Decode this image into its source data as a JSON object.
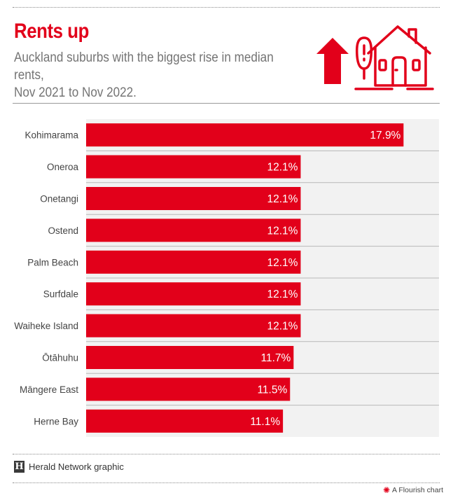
{
  "header": {
    "title": "Rents up",
    "subtitle_line1": "Auckland suburbs with the biggest rise in median rents,",
    "subtitle_line2": "Nov 2021 to Nov 2022."
  },
  "colors": {
    "accent": "#e2001a",
    "plot_background": "#f2f2f2",
    "row_divider": "#b8b8b8"
  },
  "icons": {
    "header_graphic": [
      "up-arrow-icon",
      "house-icon",
      "tree-icon"
    ]
  },
  "chart_data": {
    "type": "bar",
    "orientation": "horizontal",
    "title": "Rents up",
    "subtitle": "Auckland suburbs with the biggest rise in median rents, Nov 2021 to Nov 2022.",
    "categories": [
      "Kohimarama",
      "Oneroa",
      "Onetangi",
      "Ostend",
      "Palm Beach",
      "Surfdale",
      "Waiheke Island",
      "Ōtāhuhu",
      "Māngere East",
      "Herne Bay"
    ],
    "values": [
      17.9,
      12.1,
      12.1,
      12.1,
      12.1,
      12.1,
      12.1,
      11.7,
      11.5,
      11.1
    ],
    "value_labels": [
      "17.9%",
      "12.1%",
      "12.1%",
      "12.1%",
      "12.1%",
      "12.1%",
      "12.1%",
      "11.7%",
      "11.5%",
      "11.1%"
    ],
    "unit": "%",
    "xlim": [
      0,
      19.9
    ],
    "grid": false,
    "legend": "none"
  },
  "footer": {
    "logo_letter": "H",
    "credit": "Herald Network graphic",
    "flourish": "A Flourish chart"
  }
}
